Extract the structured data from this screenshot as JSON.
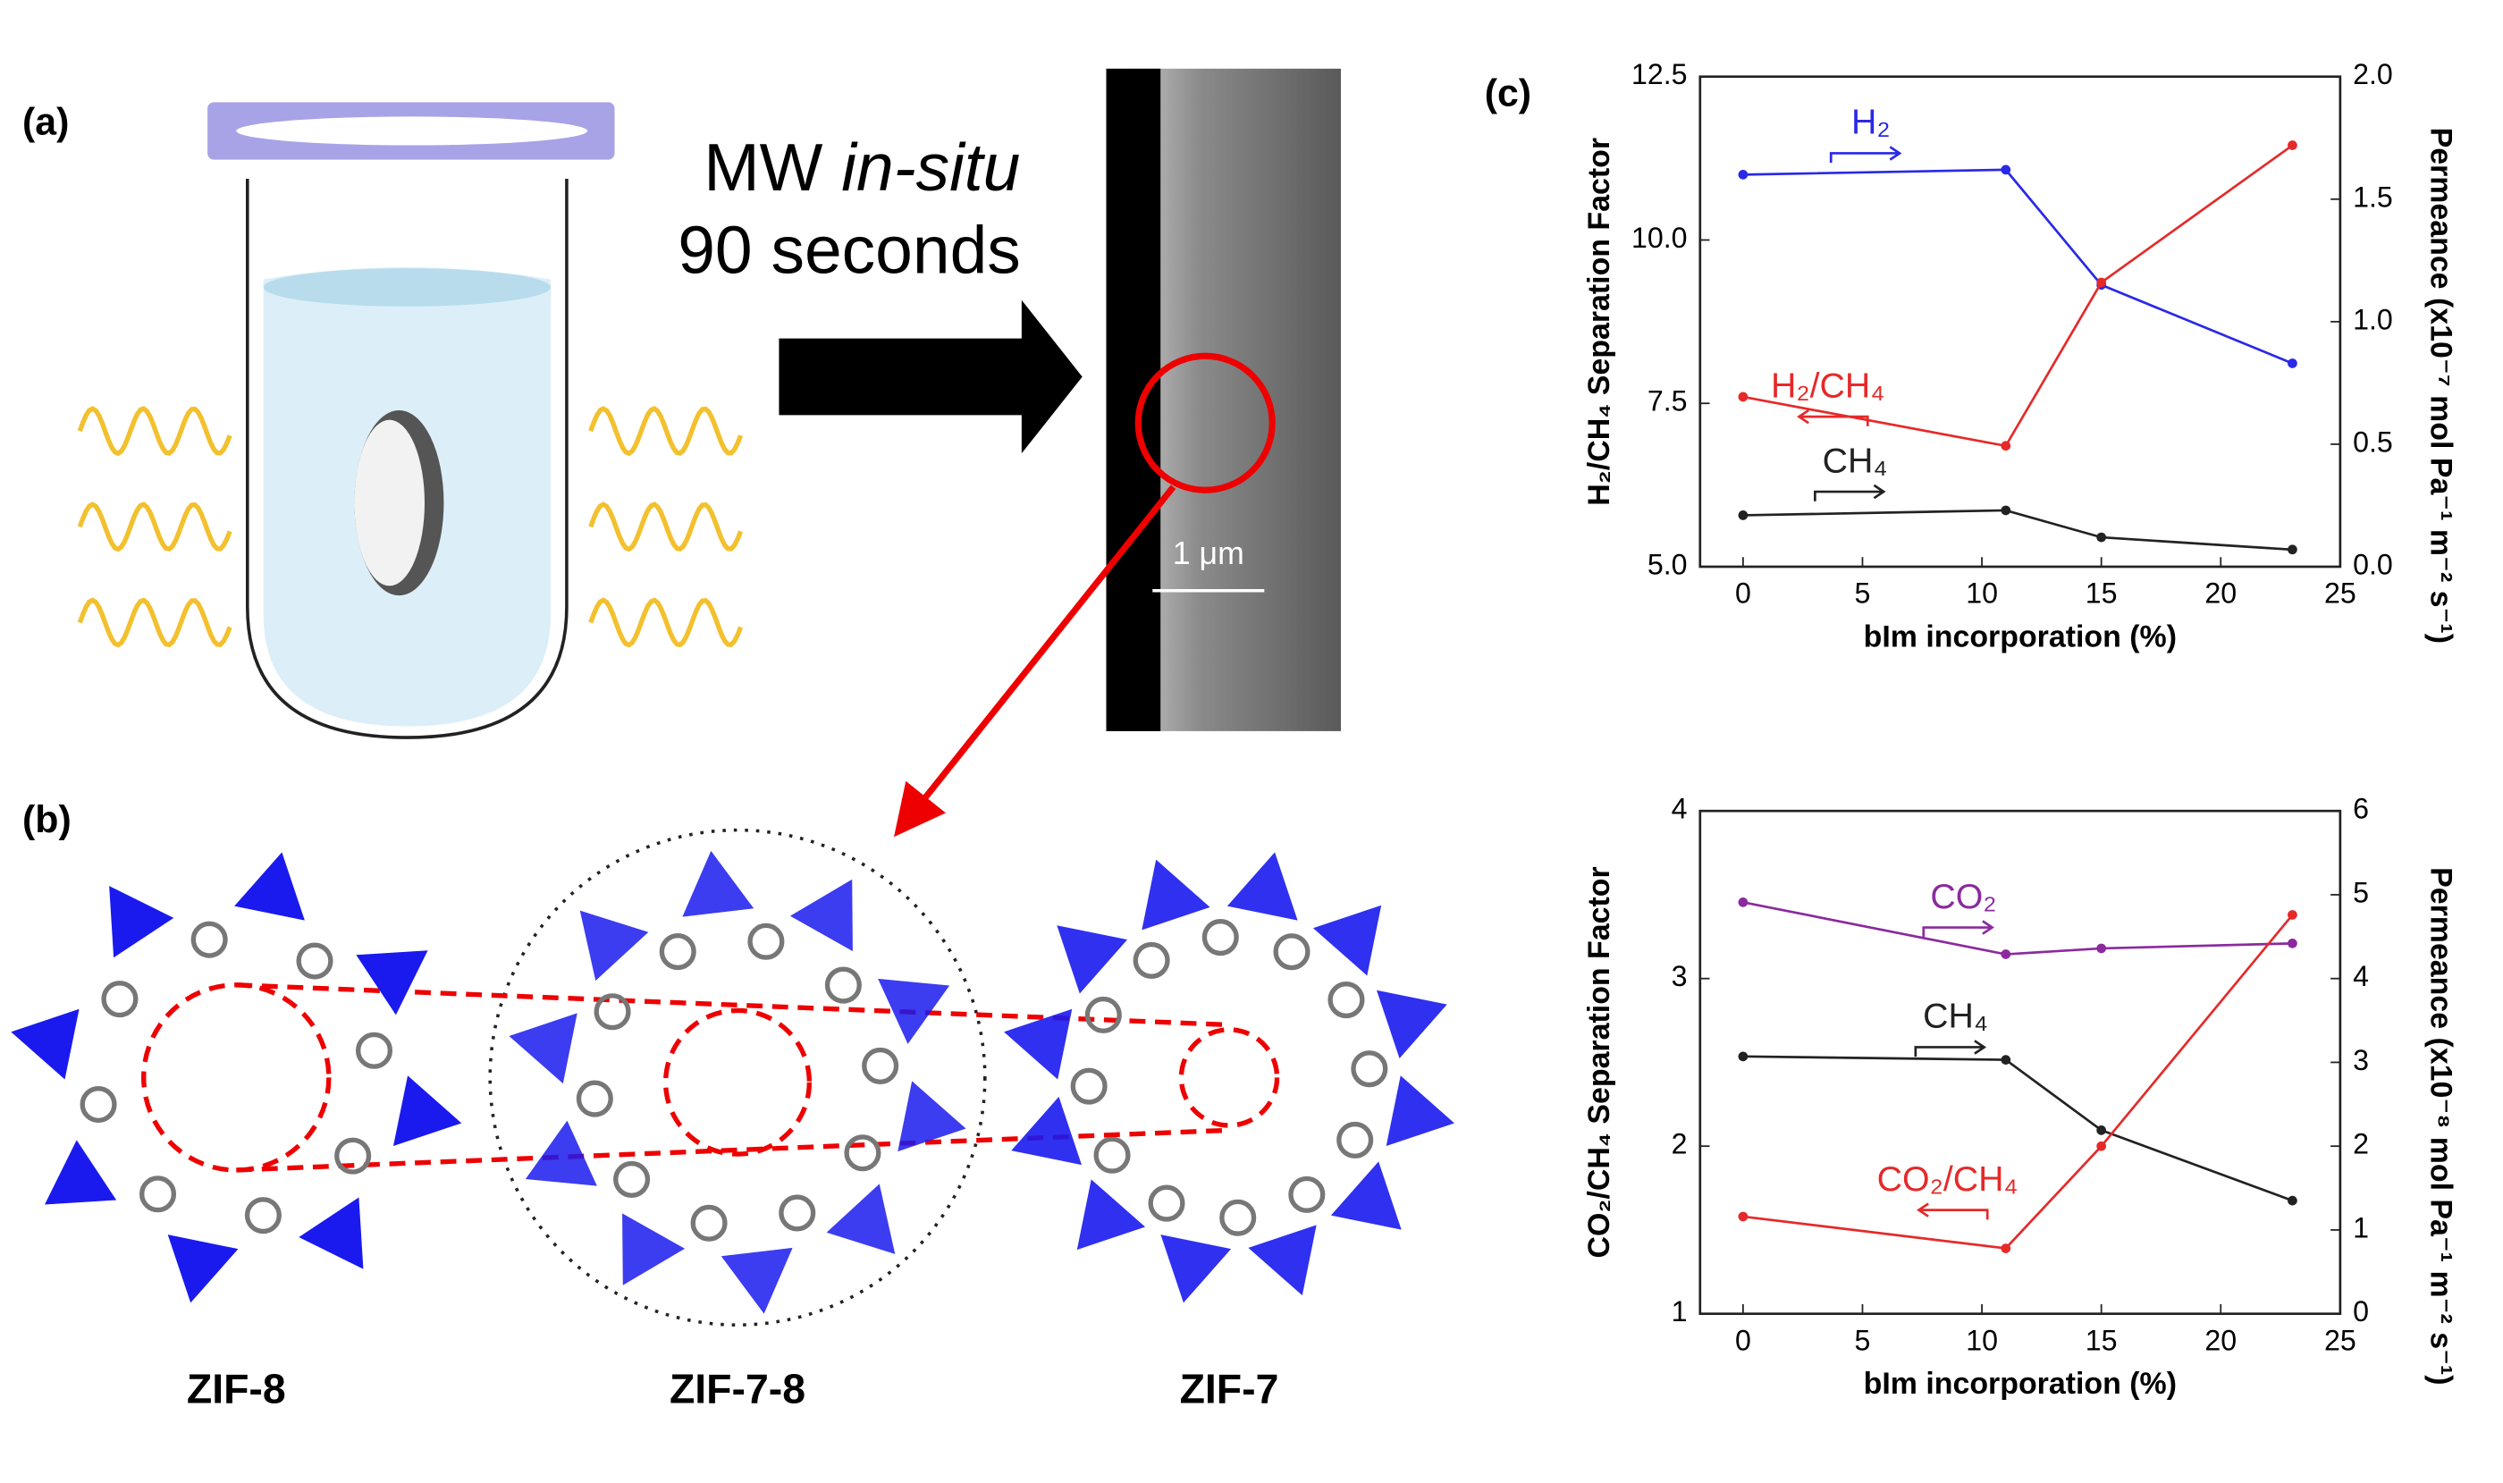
{
  "panel_labels": [
    "(a)",
    "(b)",
    "(c)"
  ],
  "scheme": {
    "line1_a": "MW ",
    "line1_b": "in-situ",
    "line2": "90 seconds",
    "scale_bar": "1 μm"
  },
  "structures": [
    "ZIF-8",
    "ZIF-7-8",
    "ZIF-7"
  ],
  "chart_data": [
    {
      "type": "line",
      "x": [
        0,
        11,
        15,
        23
      ],
      "xlim": [
        -1.8,
        25
      ],
      "xticks": [
        0,
        5,
        10,
        15,
        20,
        25
      ],
      "ylim": [
        5,
        12.5
      ],
      "yticks": [
        {
          "value": 5,
          "label": "5.0"
        },
        {
          "value": 7.5,
          "label": "7.5"
        },
        {
          "value": 10,
          "label": "10.0"
        },
        {
          "value": 12.5,
          "label": "12.5"
        }
      ],
      "y2lim": [
        0,
        2
      ],
      "y2ticks": [
        {
          "value": 0,
          "label": "0.0"
        },
        {
          "value": 0.5,
          "label": "0.5"
        },
        {
          "value": 1,
          "label": "1.0"
        },
        {
          "value": 1.5,
          "label": "1.5"
        },
        {
          "value": 2,
          "label": "2.0"
        }
      ],
      "xlabel": "bIm incorporation (%)",
      "ylabel": "H₂/CH₄ Separation Factor",
      "y2label": "Permeance (x10⁻⁷ mol Pa⁻¹ m⁻² s⁻¹)",
      "series": [
        {
          "name": "H₂",
          "color": "#2929e6",
          "axis": "y2",
          "values": [
            1.6,
            1.62,
            1.15,
            0.83
          ]
        },
        {
          "name": "H₂/CH₄",
          "color": "#e62929",
          "values": [
            7.6,
            6.85,
            9.35,
            11.45
          ]
        },
        {
          "name": "CH₄",
          "color": "#222222",
          "axis": "y2",
          "values": [
            0.21,
            0.23,
            0.12,
            0.07
          ]
        }
      ]
    },
    {
      "type": "line",
      "x": [
        0,
        11,
        15,
        23
      ],
      "xlim": [
        -1.8,
        25
      ],
      "xticks": [
        0,
        5,
        10,
        15,
        20,
        25
      ],
      "ylim": [
        1,
        4
      ],
      "yticks": [
        1,
        2,
        3,
        4
      ],
      "y2lim": [
        0,
        6
      ],
      "y2ticks": [
        0,
        1,
        2,
        3,
        4,
        5,
        6
      ],
      "xlabel": "bIm incorporation (%)",
      "ylabel": "CO₂/CH₄ Separation Factor",
      "y2label": "Permeance (x10⁻⁸ mol Pa⁻¹ m⁻² s⁻¹)",
      "series": [
        {
          "name": "CO₂",
          "color": "#8b2a9e",
          "axis": "y2",
          "values": [
            4.91,
            4.29,
            4.36,
            4.42
          ]
        },
        {
          "name": "CH₄",
          "color": "#222222",
          "axis": "y2",
          "values": [
            3.07,
            3.03,
            2.19,
            1.35
          ]
        },
        {
          "name": "CO₂/CH₄",
          "color": "#e62929",
          "values": [
            1.58,
            1.39,
            2.0,
            3.38
          ]
        }
      ]
    }
  ]
}
